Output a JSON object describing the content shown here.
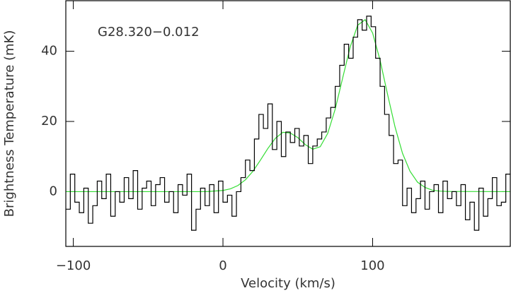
{
  "chart_data": {
    "type": "line",
    "annotation": "G28.320−0.012",
    "xlabel": "Velocity (km/s)",
    "ylabel": "Brightness Temperature (mK)",
    "xlim": [
      -105,
      192
    ],
    "ylim": [
      -15.6,
      54.4
    ],
    "xticks": [
      {
        "value": -100,
        "label": "−100"
      },
      0,
      100
    ],
    "yticks": [
      0,
      20,
      40
    ],
    "series": [
      {
        "style": "step",
        "color": "#000000",
        "x": [
          -103.5,
          -100.5,
          -97.5,
          -94.5,
          -91.5,
          -88.5,
          -85.5,
          -82.5,
          -79.5,
          -76.5,
          -73.5,
          -70.5,
          -67.5,
          -64.5,
          -61.5,
          -58.5,
          -55.5,
          -52.5,
          -49.5,
          -46.5,
          -43.5,
          -40.5,
          -37.5,
          -34.5,
          -31.5,
          -28.5,
          -25.5,
          -22.5,
          -19.5,
          -16.5,
          -13.5,
          -10.5,
          -7.5,
          -4.5,
          -1.5,
          1.5,
          4.5,
          7.5,
          10.5,
          13.5,
          16.5,
          19.5,
          22.5,
          25.5,
          28.5,
          31.5,
          34.5,
          37.5,
          40.5,
          43.5,
          46.5,
          49.5,
          52.5,
          55.5,
          58.5,
          61.5,
          64.5,
          67.5,
          70.5,
          73.5,
          76.5,
          79.5,
          82.5,
          85.5,
          88.5,
          91.5,
          94.5,
          97.5,
          100.5,
          103.5,
          106.5,
          109.5,
          112.5,
          115.5,
          118.5,
          121.5,
          124.5,
          127.5,
          130.5,
          133.5,
          136.5,
          139.5,
          142.5,
          145.5,
          148.5,
          151.5,
          154.5,
          157.5,
          160.5,
          163.5,
          166.5,
          169.5,
          172.5,
          175.5,
          178.5,
          181.5,
          184.5,
          187.5,
          190.5
        ],
        "values": [
          -5,
          5,
          -3,
          -6,
          1,
          -9,
          -4,
          3,
          -2,
          5,
          -7,
          0,
          -3,
          4,
          -2,
          6,
          -5,
          1,
          3,
          -4,
          2,
          4,
          -3,
          0,
          -6,
          2,
          -1,
          5,
          -11,
          -5,
          1,
          -4,
          2,
          -6,
          3,
          -3,
          -1,
          -7,
          0,
          4,
          9,
          6,
          15,
          22,
          18,
          25,
          12,
          20,
          10,
          17,
          14,
          18,
          13,
          16,
          8,
          13,
          15,
          17,
          21,
          24,
          30,
          36,
          42,
          38,
          44,
          49,
          46,
          50,
          47,
          38,
          30,
          22,
          16,
          8,
          9,
          -4,
          1,
          -6,
          -2,
          3,
          -5,
          0,
          2,
          -6,
          3,
          -2,
          0,
          -4,
          2,
          -8,
          -3,
          -11,
          1,
          -7,
          -2,
          4,
          -4,
          -3,
          5
        ]
      },
      {
        "style": "line",
        "color": "#33dd33",
        "x": [
          -105,
          -15,
          -10,
          0,
          5,
          10,
          15,
          20,
          25,
          30,
          35,
          40,
          45,
          50,
          55,
          60,
          65,
          70,
          75,
          80,
          85,
          90,
          95,
          100,
          105,
          110,
          115,
          120,
          125,
          130,
          135,
          140,
          145,
          150,
          192
        ],
        "values": [
          0,
          0,
          0.04,
          0.34,
          0.81,
          1.75,
          3.37,
          5.8,
          8.95,
          12.3,
          15.2,
          16.9,
          16.7,
          15.4,
          13.4,
          12.1,
          12.8,
          16.6,
          23.5,
          32.4,
          41.2,
          47.4,
          49,
          45.2,
          37.4,
          27.7,
          18.4,
          10.9,
          5.8,
          2.7,
          1.2,
          0.4,
          0.15,
          0.05,
          0
        ]
      }
    ]
  }
}
